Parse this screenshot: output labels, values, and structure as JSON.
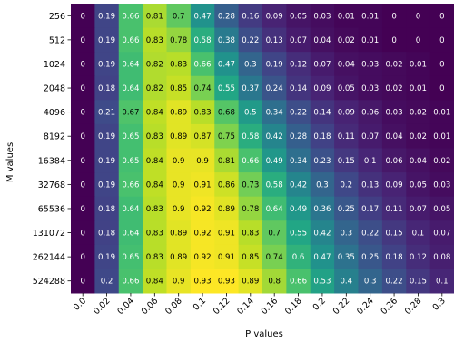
{
  "chart_data": {
    "type": "heatmap",
    "title": "",
    "xlabel": "P values",
    "ylabel": "M values",
    "x_ticks": [
      "0.0",
      "0.02",
      "0.04",
      "0.06",
      "0.08",
      "0.1",
      "0.12",
      "0.14",
      "0.16",
      "0.18",
      "0.2",
      "0.22",
      "0.24",
      "0.26",
      "0.28",
      "0.3"
    ],
    "y_ticks": [
      "256",
      "512",
      "1024",
      "2048",
      "4096",
      "8192",
      "16384",
      "32768",
      "65536",
      "131072",
      "262144",
      "524288"
    ],
    "colormap": "viridis",
    "value_range": [
      0.0,
      0.93
    ],
    "values": [
      [
        0.0,
        0.19,
        0.66,
        0.81,
        0.7,
        0.47,
        0.28,
        0.16,
        0.09,
        0.05,
        0.03,
        0.01,
        0.01,
        0.0,
        0.0,
        0.0
      ],
      [
        0.0,
        0.19,
        0.66,
        0.83,
        0.78,
        0.58,
        0.38,
        0.22,
        0.13,
        0.07,
        0.04,
        0.02,
        0.01,
        0.0,
        0.0,
        0.0
      ],
      [
        0.0,
        0.19,
        0.64,
        0.82,
        0.83,
        0.66,
        0.47,
        0.3,
        0.19,
        0.12,
        0.07,
        0.04,
        0.03,
        0.02,
        0.01,
        0.0
      ],
      [
        0.0,
        0.18,
        0.64,
        0.82,
        0.85,
        0.74,
        0.55,
        0.37,
        0.24,
        0.14,
        0.09,
        0.05,
        0.03,
        0.02,
        0.01,
        0.0
      ],
      [
        0.0,
        0.21,
        0.67,
        0.84,
        0.89,
        0.83,
        0.68,
        0.5,
        0.34,
        0.22,
        0.14,
        0.09,
        0.06,
        0.03,
        0.02,
        0.01
      ],
      [
        0.0,
        0.19,
        0.65,
        0.83,
        0.89,
        0.87,
        0.75,
        0.58,
        0.42,
        0.28,
        0.18,
        0.11,
        0.07,
        0.04,
        0.02,
        0.01
      ],
      [
        0.0,
        0.19,
        0.65,
        0.84,
        0.9,
        0.9,
        0.81,
        0.66,
        0.49,
        0.34,
        0.23,
        0.15,
        0.1,
        0.06,
        0.04,
        0.02
      ],
      [
        0.0,
        0.19,
        0.66,
        0.84,
        0.9,
        0.91,
        0.86,
        0.73,
        0.58,
        0.42,
        0.3,
        0.2,
        0.13,
        0.09,
        0.05,
        0.03
      ],
      [
        0.0,
        0.18,
        0.64,
        0.83,
        0.9,
        0.92,
        0.89,
        0.78,
        0.64,
        0.49,
        0.36,
        0.25,
        0.17,
        0.11,
        0.07,
        0.05
      ],
      [
        0.0,
        0.18,
        0.64,
        0.83,
        0.89,
        0.92,
        0.91,
        0.83,
        0.7,
        0.55,
        0.42,
        0.3,
        0.22,
        0.15,
        0.1,
        0.07
      ],
      [
        0.0,
        0.19,
        0.65,
        0.83,
        0.89,
        0.92,
        0.91,
        0.85,
        0.74,
        0.6,
        0.47,
        0.35,
        0.25,
        0.18,
        0.12,
        0.08
      ],
      [
        0.0,
        0.2,
        0.66,
        0.84,
        0.9,
        0.93,
        0.93,
        0.89,
        0.8,
        0.66,
        0.53,
        0.4,
        0.3,
        0.22,
        0.15,
        0.1
      ]
    ]
  }
}
